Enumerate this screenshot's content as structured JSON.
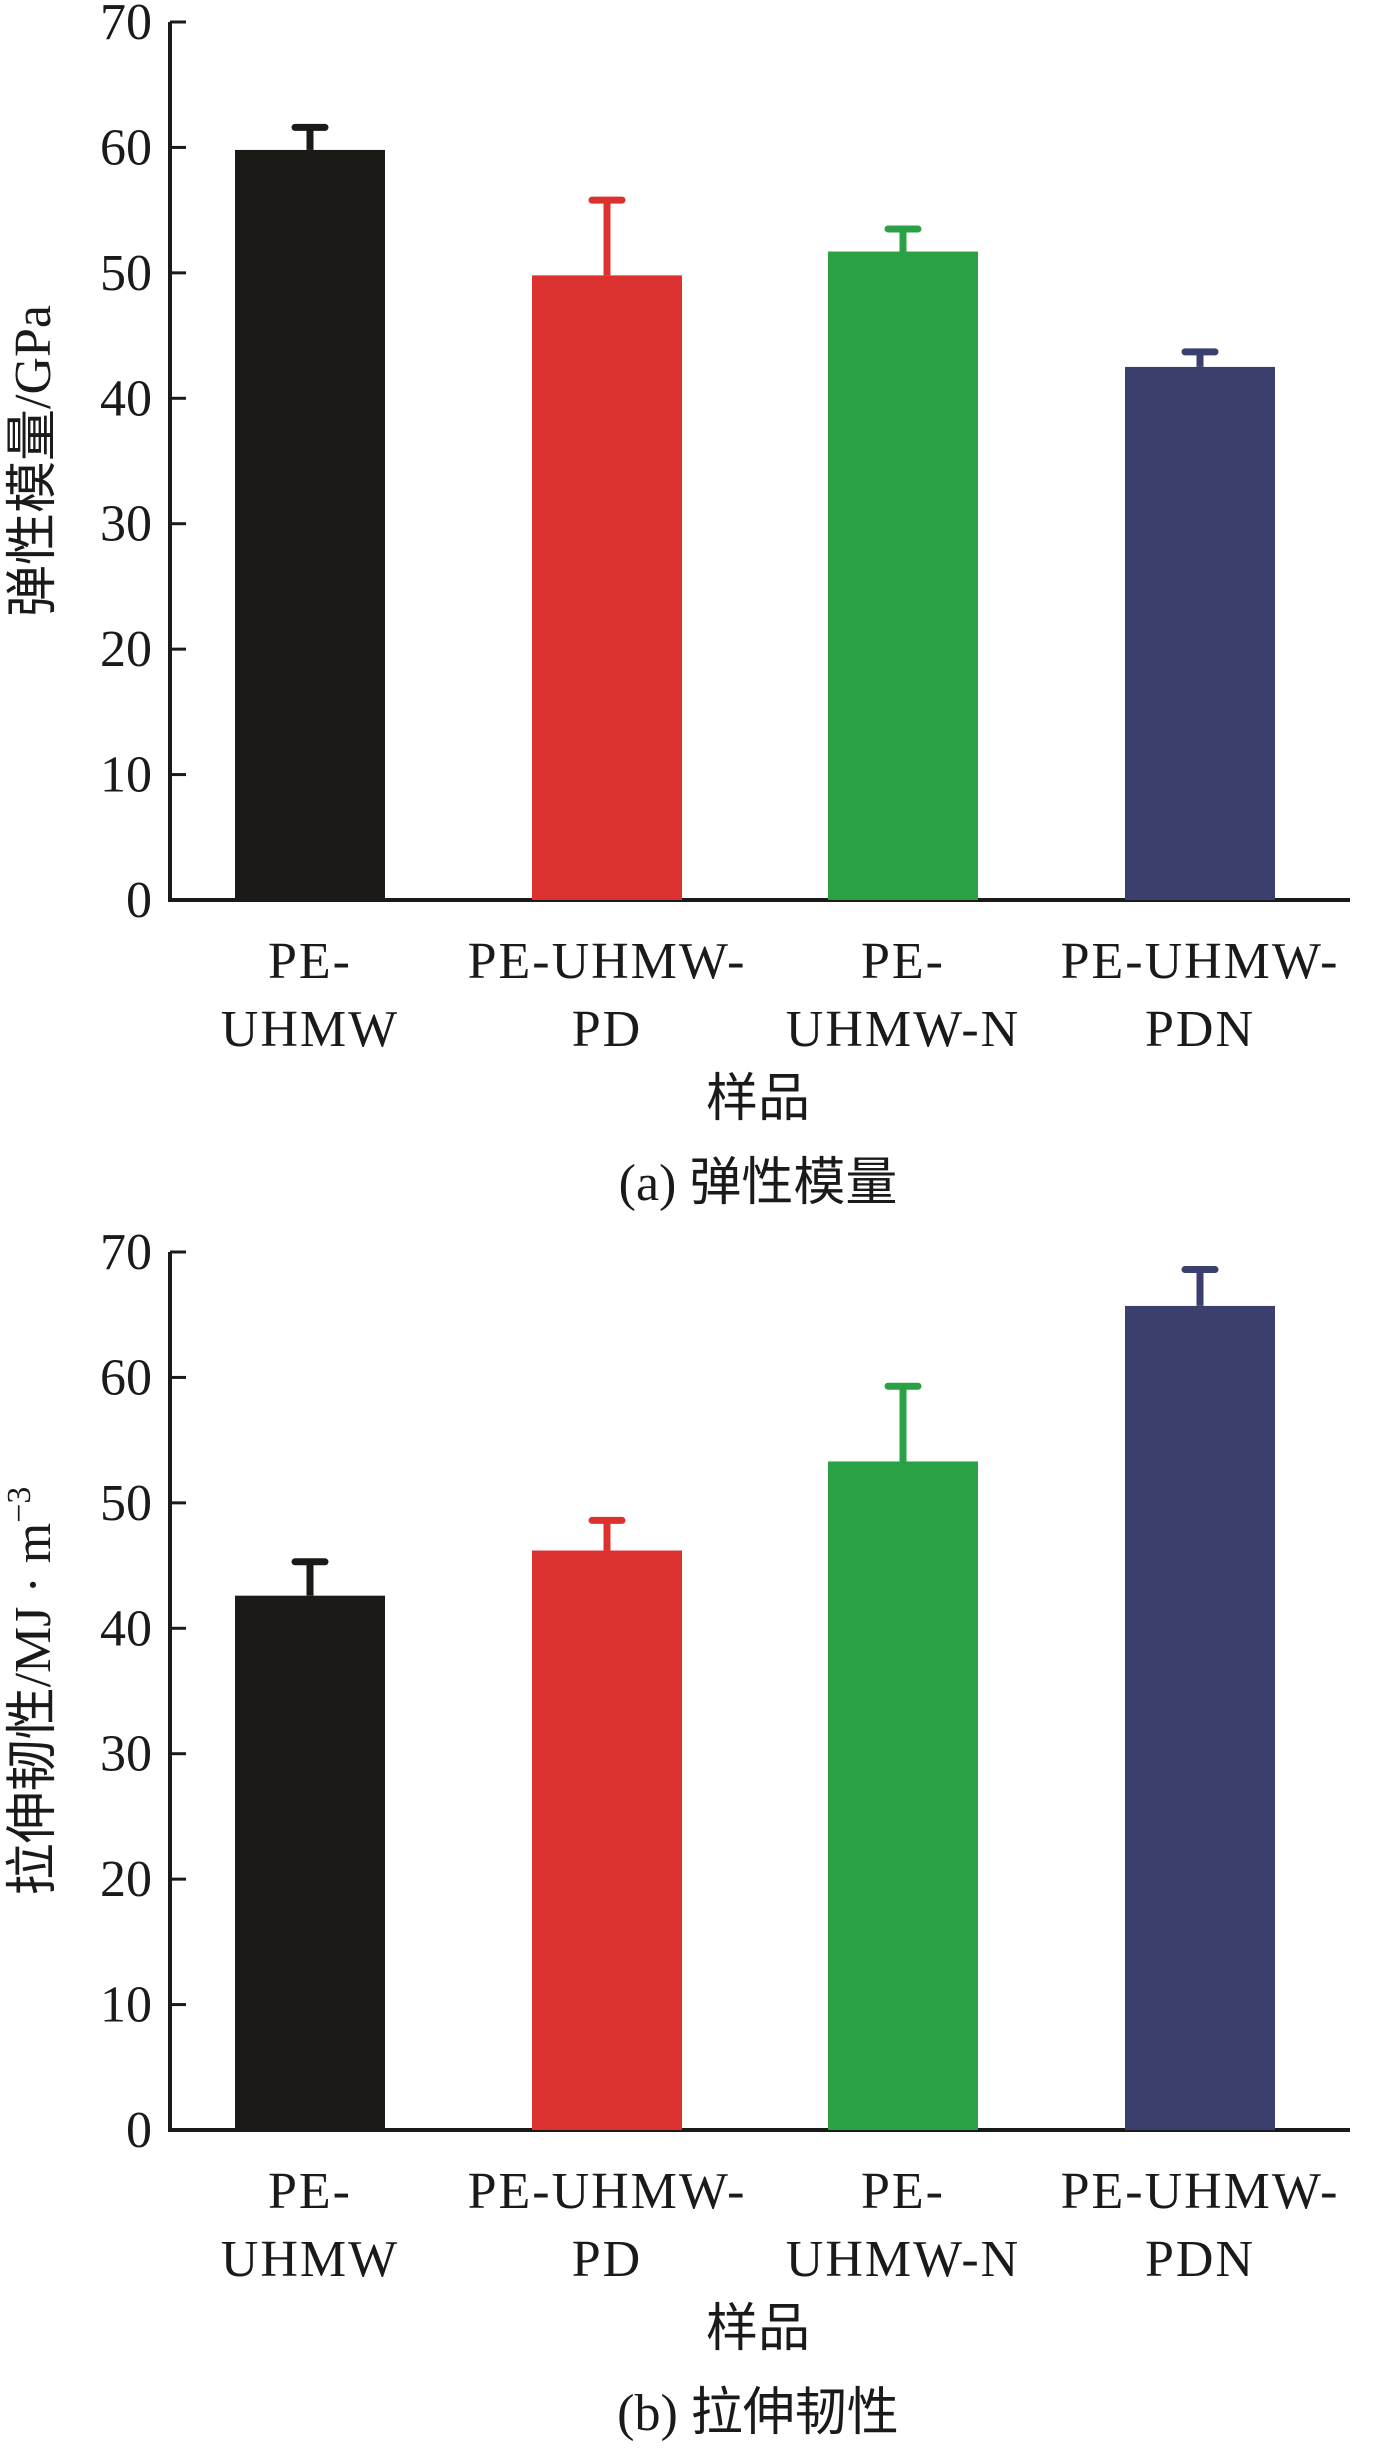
{
  "chart_data": [
    {
      "type": "bar",
      "caption": "(a) 弹性模量",
      "xlabel": "样品",
      "ylabel": "弹性模量/GPa",
      "ylim": [
        0,
        70
      ],
      "yticks": [
        "0",
        "10",
        "20",
        "30",
        "40",
        "50",
        "60",
        "70"
      ],
      "categories": [
        [
          "PE-",
          "UHMW"
        ],
        [
          "PE-UHMW-",
          "PD"
        ],
        [
          "PE-",
          "UHMW-N"
        ],
        [
          "PE-UHMW-",
          "PDN"
        ]
      ],
      "values": [
        59.8,
        49.8,
        51.7,
        42.5
      ],
      "errors": [
        1.8,
        6.0,
        1.8,
        1.2
      ],
      "colors": [
        "#1c1a17",
        "#dc322f",
        "#2aa145",
        "#3b3f6e"
      ],
      "grid": false
    },
    {
      "type": "bar",
      "caption": "(b) 拉伸韧性",
      "xlabel": "样品",
      "ylabel": "拉伸韧性/MJ · m",
      "ylabel_sup": "−3",
      "ylim": [
        0,
        70
      ],
      "yticks": [
        "0",
        "10",
        "20",
        "30",
        "40",
        "50",
        "60",
        "70"
      ],
      "categories": [
        [
          "PE-",
          "UHMW"
        ],
        [
          "PE-UHMW-",
          "PD"
        ],
        [
          "PE-",
          "UHMW-N"
        ],
        [
          "PE-UHMW-",
          "PDN"
        ]
      ],
      "values": [
        42.6,
        46.2,
        53.3,
        65.7
      ],
      "errors": [
        2.7,
        2.4,
        6.0,
        2.9
      ],
      "colors": [
        "#1c1a17",
        "#dc322f",
        "#2aa145",
        "#3b3f6e"
      ],
      "grid": false
    }
  ]
}
